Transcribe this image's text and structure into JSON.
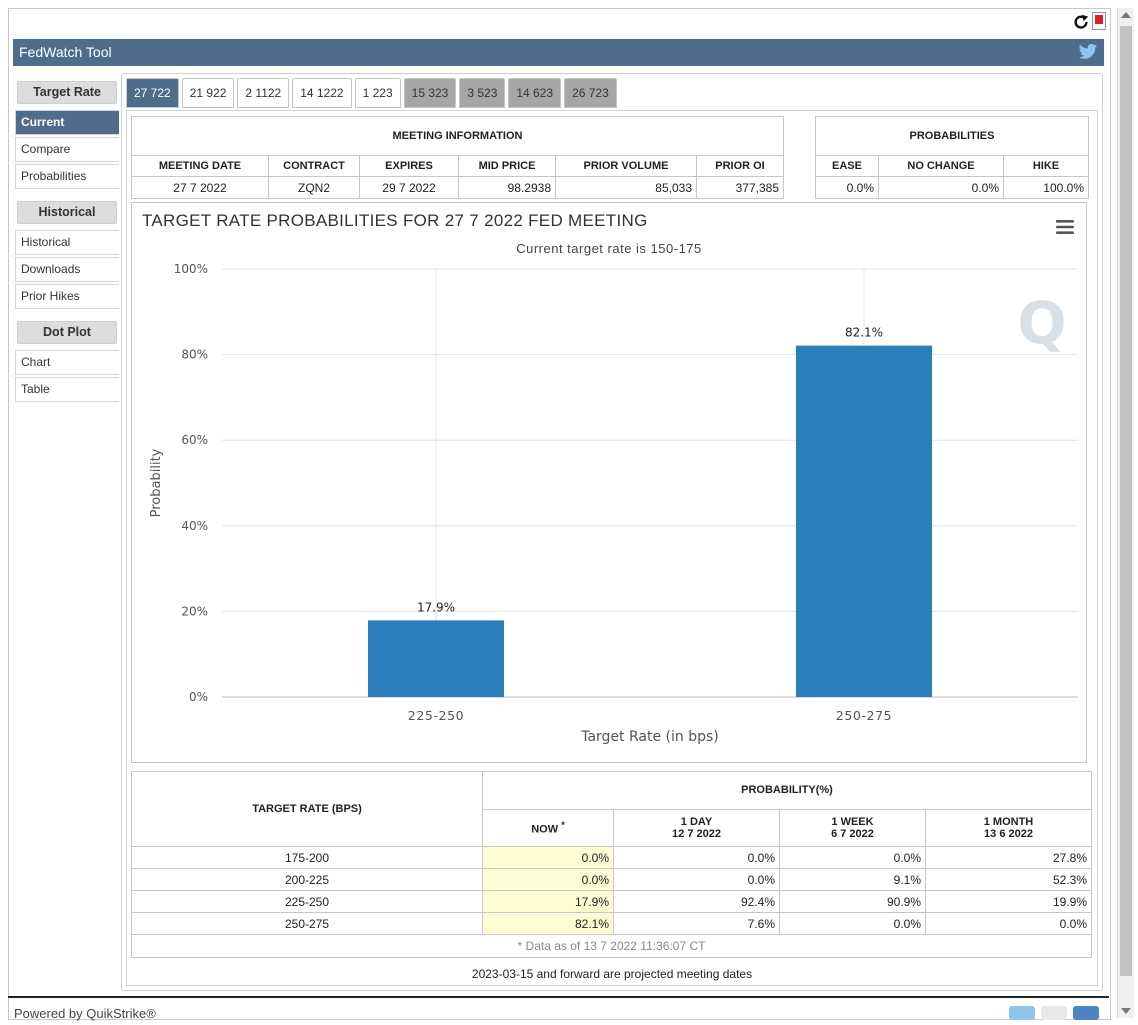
{
  "header": {
    "title": "FedWatch Tool"
  },
  "sidebar": {
    "sections": [
      {
        "title": "Target Rate",
        "items": [
          "Current",
          "Compare",
          "Probabilities"
        ]
      },
      {
        "title": "Historical",
        "items": [
          "Historical",
          "Downloads",
          "Prior Hikes"
        ]
      },
      {
        "title": "Dot Plot",
        "items": [
          "Chart",
          "Table"
        ]
      }
    ],
    "active_item": "Current"
  },
  "tabs": [
    "27 722",
    "21 922",
    "2 1122",
    "14 1222",
    "1 223",
    "15 323",
    "3 523",
    "14 623",
    "26 723"
  ],
  "meeting_info": {
    "caption": "MEETING INFORMATION",
    "headers": [
      "MEETING DATE",
      "CONTRACT",
      "EXPIRES",
      "MID PRICE",
      "PRIOR VOLUME",
      "PRIOR OI"
    ],
    "values": [
      "27 7 2022",
      "ZQN2",
      "29 7 2022",
      "98.2938",
      "85,033",
      "377,385"
    ]
  },
  "probabilities": {
    "caption": "PROBABILITIES",
    "headers": [
      "EASE",
      "NO CHANGE",
      "HIKE"
    ],
    "values": [
      "0.0%",
      "0.0%",
      "100.0%"
    ]
  },
  "chart_data": {
    "type": "bar",
    "title": "TARGET RATE PROBABILITIES FOR 27 7 2022 FED MEETING",
    "subtitle": "Current target rate is 150-175",
    "categories": [
      "225-250",
      "250-275"
    ],
    "values": [
      17.9,
      82.1
    ],
    "data_labels": [
      "17.9%",
      "82.1%"
    ],
    "xlabel": "Target Rate (in bps)",
    "ylabel": "Probability",
    "ylim": [
      0,
      100
    ],
    "yticks": [
      "0%",
      "20%",
      "40%",
      "60%",
      "80%",
      "100%"
    ],
    "bar_color": "#2a7fba",
    "grid": true
  },
  "rate_table": {
    "row_header": "TARGET RATE (BPS)",
    "group_header": "PROBABILITY(%)",
    "columns": [
      {
        "label": "NOW",
        "sup": "*",
        "date": ""
      },
      {
        "label": "1 DAY",
        "date": "12 7 2022"
      },
      {
        "label": "1 WEEK",
        "date": "6 7 2022"
      },
      {
        "label": "1 MONTH",
        "date": "13 6 2022"
      }
    ],
    "rows": [
      {
        "rate": "175-200",
        "values": [
          "0.0%",
          "0.0%",
          "0.0%",
          "27.8%"
        ]
      },
      {
        "rate": "200-225",
        "values": [
          "0.0%",
          "0.0%",
          "9.1%",
          "52.3%"
        ]
      },
      {
        "rate": "225-250",
        "values": [
          "17.9%",
          "92.4%",
          "90.9%",
          "19.9%"
        ]
      },
      {
        "rate": "250-275",
        "values": [
          "82.1%",
          "7.6%",
          "0.0%",
          "0.0%"
        ]
      }
    ],
    "note": "* Data as of 13 7 2022 11:36:07 CT"
  },
  "footnote": "2023-03-15 and forward are projected meeting dates",
  "footer": {
    "powered_by": "Powered by QuikStrike®"
  }
}
